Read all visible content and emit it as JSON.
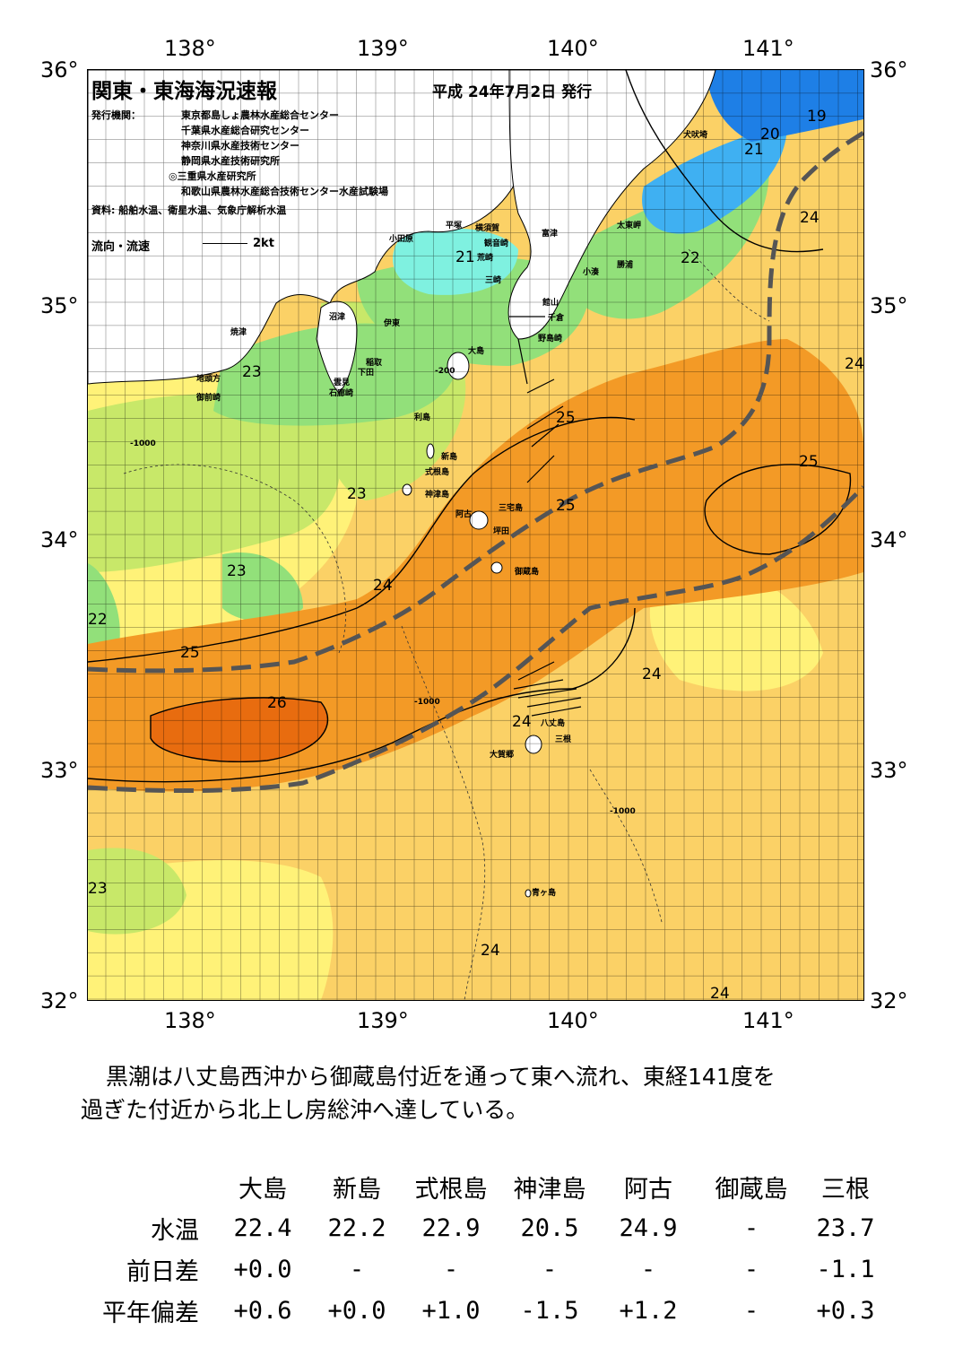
{
  "map": {
    "title": "関東・東海海況速報",
    "issue_date": "平成 24年7月2日 発行",
    "agencies_label": "発行機関：",
    "agencies": [
      "東京都島しょ農林水産総合センター",
      "千葉県水産総合研究センター",
      "神奈川県水産技術センター",
      "静岡県水産技術研究所",
      "◎三重県水産研究所",
      "和歌山県農林水産総合技術センター水産試験場"
    ],
    "sources": "資料: 船舶水温、衛星水温、気象庁解析水温",
    "current_legend": "流向・流速",
    "current_scale": "2kt",
    "lon_labels": [
      "138°",
      "139°",
      "140°",
      "141°"
    ],
    "lat_labels": [
      "36°",
      "35°",
      "34°",
      "33°",
      "32°"
    ],
    "place_names": {
      "inubosaki": "犬吠埼",
      "taitomisaki": "太東岬",
      "katsuura": "勝浦",
      "kominato": "小湊",
      "futtsu": "富津",
      "kannonzaki": "観音崎",
      "yokosuka": "横須賀",
      "hiratsuka": "平塚",
      "odawara": "小田原",
      "arasaki": "荒崎",
      "misaki": "三崎",
      "tateyama": "館山",
      "chikura": "千倉",
      "nojimazaki": "野島崎",
      "numazu": "沼津",
      "ito": "伊東",
      "yaizu": "焼津",
      "inatori": "稲取",
      "shimoda": "下田",
      "mikomoto": "雲見",
      "irozaki": "石廊崎",
      "jitokata": "地頭方",
      "omaezaki": "御前崎",
      "oshima": "大島",
      "toshima": "利島",
      "niijima": "新島",
      "shikinejima": "式根島",
      "kozushima": "神津島",
      "ako": "阿古",
      "tsubota": "坪田",
      "miyakejima": "三宅島",
      "mikurajima": "御蔵島",
      "hachijojima": "八丈島",
      "okago": "大賀郷",
      "sanne": "三根",
      "aogashima": "青ヶ島"
    },
    "isotherm_labels": [
      "19",
      "20",
      "21",
      "21",
      "22",
      "24",
      "24",
      "23",
      "23",
      "23",
      "25",
      "25",
      "25",
      "24",
      "23",
      "22",
      "25",
      "26",
      "24",
      "24",
      "23",
      "24",
      "24"
    ],
    "depth_labels": [
      "-200",
      "-1000"
    ],
    "colors": {
      "t19": "#1e7fe6",
      "t20": "#3fb0f2",
      "t21": "#7ff1e0",
      "t22": "#92e07a",
      "t23": "#c8e869",
      "t24_low": "#fff278",
      "t24": "#fbd166",
      "t24_high": "#f5b64c",
      "t25": "#f39a26",
      "t26": "#e86c0f",
      "land": "#ffffff",
      "kuroshio_axis": "#555555"
    }
  },
  "description": {
    "line1": "黒潮は八丈島西沖から御蔵島付近を通って東へ流れ、東経141度を",
    "line2": "過ぎた付近から北上し房総沖へ達している。"
  },
  "table": {
    "columns": [
      "大島",
      "新島",
      "式根島",
      "神津島",
      "阿古",
      "御蔵島",
      "三根"
    ],
    "rows": [
      {
        "label": "水温",
        "values": [
          "22.4",
          "22.2",
          "22.9",
          "20.5",
          "24.9",
          "-",
          "23.7"
        ]
      },
      {
        "label": "前日差",
        "values": [
          "+0.0",
          "-",
          "-",
          "-",
          "-",
          "-",
          "-1.1"
        ]
      },
      {
        "label": "平年偏差",
        "values": [
          "+0.6",
          "+0.0",
          "+1.0",
          "-1.5",
          "+1.2",
          "-",
          "+0.3"
        ]
      }
    ]
  }
}
